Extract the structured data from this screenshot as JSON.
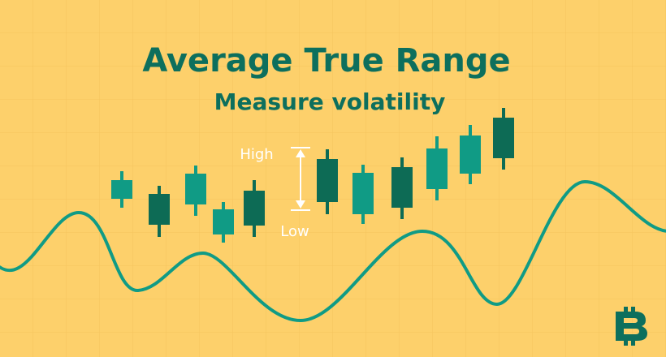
{
  "title": "Average True Range",
  "subtitle": "Measure volatility",
  "range_labels": {
    "high": "High",
    "low": "Low"
  }
}
